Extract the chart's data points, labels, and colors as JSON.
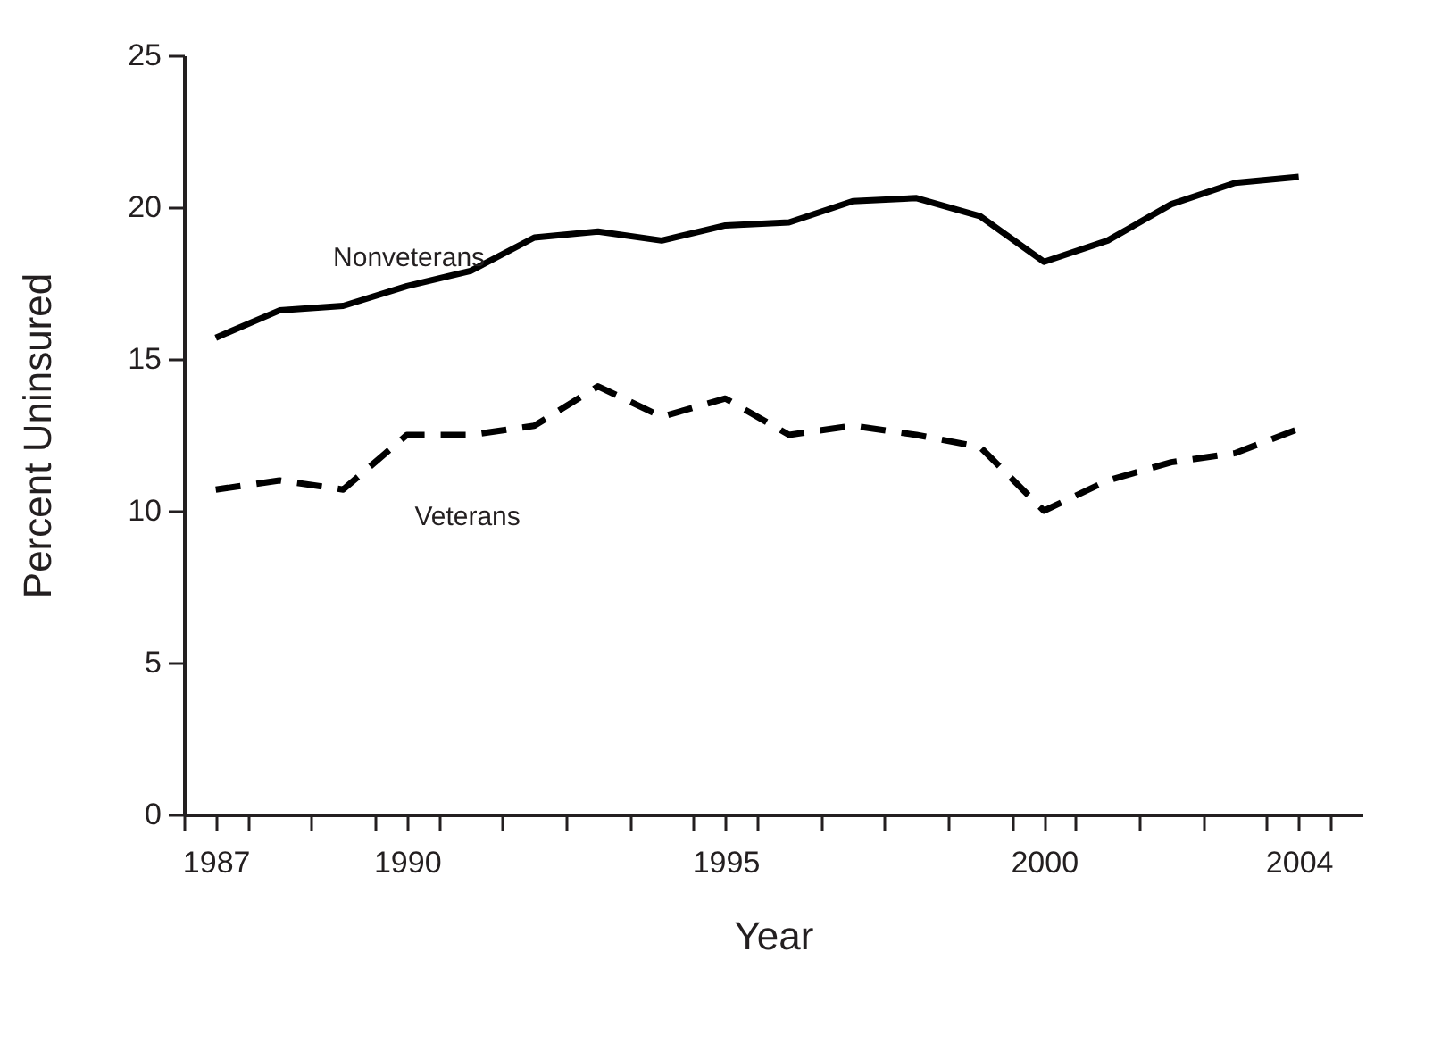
{
  "chart_data": {
    "type": "line",
    "xlabel": "Year",
    "ylabel": "Percent Uninsured",
    "x": [
      1987,
      1988,
      1989,
      1990,
      1991,
      1992,
      1993,
      1994,
      1995,
      1996,
      1997,
      1998,
      1999,
      2000,
      2001,
      2002,
      2003,
      2004
    ],
    "series": [
      {
        "name": "Nonveterans",
        "color": "#000000",
        "line_style": "solid",
        "values": [
          15.7,
          16.6,
          16.75,
          17.4,
          17.9,
          19.0,
          19.2,
          18.9,
          19.4,
          19.5,
          20.2,
          20.3,
          19.7,
          18.2,
          18.9,
          20.1,
          20.8,
          21.0
        ]
      },
      {
        "name": "Veterans",
        "color": "#000000",
        "line_style": "dashed",
        "values": [
          10.7,
          11.0,
          10.7,
          12.5,
          12.5,
          12.8,
          14.1,
          13.1,
          13.7,
          12.5,
          12.8,
          12.5,
          12.1,
          10.0,
          11.0,
          11.6,
          11.9,
          12.7
        ]
      }
    ],
    "xlim": [
      1986.5,
      2005
    ],
    "xticks": [
      {
        "value": 1986.5,
        "label": null
      },
      {
        "value": 1987,
        "label": "1987"
      },
      {
        "value": 1987.5,
        "label": null
      },
      {
        "value": 1988.5,
        "label": null
      },
      {
        "value": 1989.5,
        "label": null
      },
      {
        "value": 1990,
        "label": "1990"
      },
      {
        "value": 1990.5,
        "label": null
      },
      {
        "value": 1991.5,
        "label": null
      },
      {
        "value": 1992.5,
        "label": null
      },
      {
        "value": 1993.5,
        "label": null
      },
      {
        "value": 1994.5,
        "label": null
      },
      {
        "value": 1995,
        "label": "1995"
      },
      {
        "value": 1995.5,
        "label": null
      },
      {
        "value": 1996.5,
        "label": null
      },
      {
        "value": 1997.5,
        "label": null
      },
      {
        "value": 1998.5,
        "label": null
      },
      {
        "value": 1999.5,
        "label": null
      },
      {
        "value": 2000,
        "label": "2000"
      },
      {
        "value": 2000.5,
        "label": null
      },
      {
        "value": 2001.5,
        "label": null
      },
      {
        "value": 2002.5,
        "label": null
      },
      {
        "value": 2003.5,
        "label": null
      },
      {
        "value": 2004,
        "label": "2004"
      },
      {
        "value": 2004.5,
        "label": null
      }
    ],
    "ylim": [
      0,
      25
    ],
    "yticks": [
      0,
      5,
      10,
      15,
      20,
      25
    ],
    "grid": false,
    "marker": "none"
  }
}
